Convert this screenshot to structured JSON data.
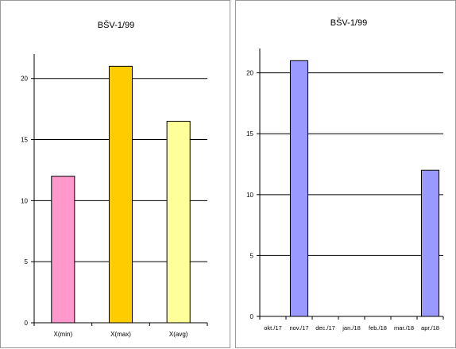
{
  "chart_data": [
    {
      "type": "bar",
      "title": "BŠV-1/99",
      "categories": [
        "X(min)",
        "X(max)",
        "X(avg)"
      ],
      "values": [
        12,
        21,
        16.5
      ],
      "bar_colors": [
        "#ff99cc",
        "#ffcc00",
        "#ffff99"
      ],
      "ylim": [
        0,
        22
      ],
      "yticks": [
        0,
        5,
        10,
        15,
        20
      ],
      "grid": true,
      "legend": "none"
    },
    {
      "type": "bar",
      "title": "BŠV-1/99",
      "categories": [
        "okt./17",
        "nov./17",
        "dec./17",
        "jan./18",
        "feb./18",
        "mar./18",
        "apr./18"
      ],
      "values": [
        0,
        21,
        0,
        0,
        0,
        0,
        12
      ],
      "bar_colors": [
        "#9999ff"
      ],
      "ylim": [
        0,
        22
      ],
      "yticks": [
        0,
        5,
        10,
        15,
        20
      ],
      "grid": true,
      "legend": "none"
    }
  ]
}
